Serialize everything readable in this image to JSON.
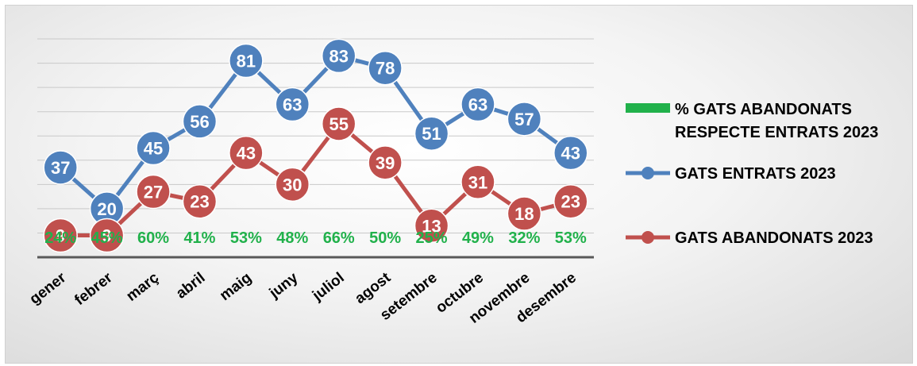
{
  "chart_data": {
    "type": "line",
    "categories": [
      "gener",
      "febrer",
      "març",
      "abril",
      "maig",
      "juny",
      "juliol",
      "agost",
      "setembre",
      "octubre",
      "novembre",
      "desembre"
    ],
    "series": [
      {
        "name": "GATS ENTRATS 2023",
        "values": [
          37,
          20,
          45,
          56,
          81,
          63,
          83,
          78,
          51,
          63,
          57,
          43
        ],
        "color": "#4f81bd",
        "value_labels": [
          "37",
          "20",
          "45",
          "56",
          "81",
          "63",
          "83",
          "78",
          "51",
          "63",
          "57",
          "43"
        ]
      },
      {
        "name": "GATS ABANDONATS 2023",
        "values": [
          9,
          9,
          27,
          23,
          43,
          30,
          55,
          39,
          13,
          31,
          18,
          23
        ],
        "color": "#c0504d",
        "value_labels": [
          "9",
          "9",
          "27",
          "23",
          "43",
          "30",
          "55",
          "39",
          "13",
          "31",
          "18",
          "23"
        ]
      }
    ],
    "percent_series": {
      "name": "% GATS ABANDONATS RESPECTE ENTRATS 2023",
      "name_lines": [
        "% GATS ABANDONATS",
        "RESPECTE ENTRATS 2023"
      ],
      "labels": [
        "24%",
        "45%",
        "60%",
        "41%",
        "53%",
        "48%",
        "66%",
        "50%",
        "25%",
        "49%",
        "32%",
        "53%"
      ],
      "color": "#21b14b"
    },
    "ylim": [
      0,
      100
    ],
    "grid": true,
    "legend": "right"
  }
}
